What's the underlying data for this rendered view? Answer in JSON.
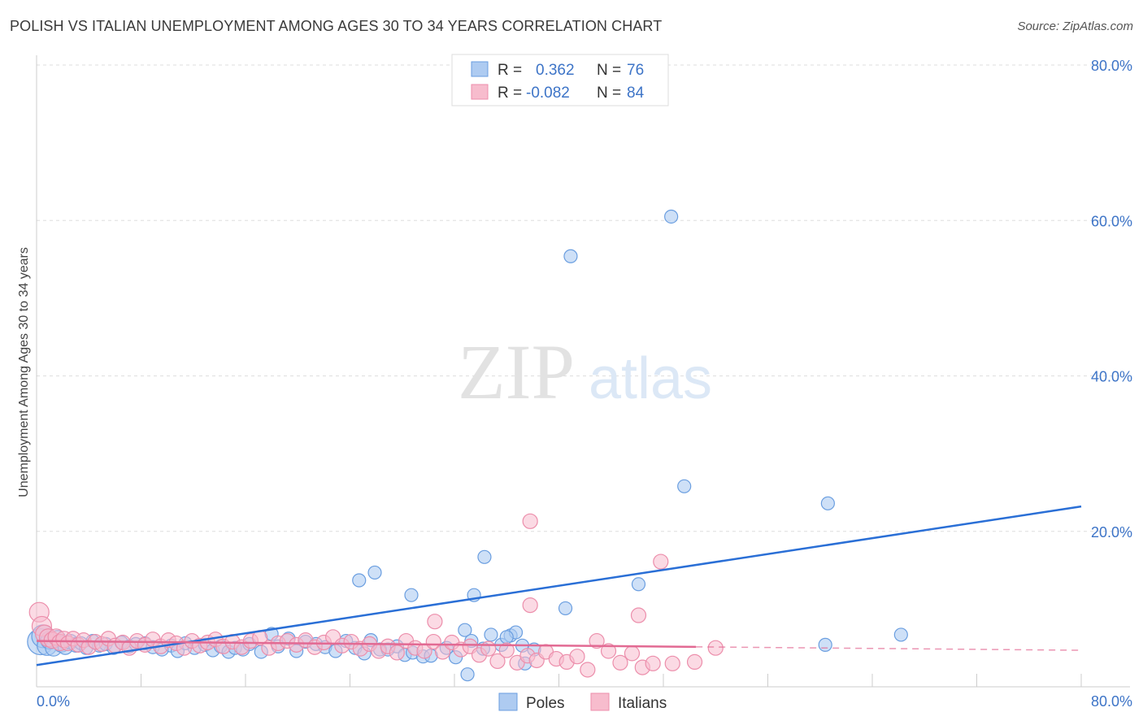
{
  "title": "POLISH VS ITALIAN UNEMPLOYMENT AMONG AGES 30 TO 34 YEARS CORRELATION CHART",
  "source": "Source: ZipAtlas.com",
  "watermark": {
    "zip": "ZIP",
    "atlas": "atlas"
  },
  "legend_stats": [
    {
      "r_label": "R =",
      "r_value": "0.362",
      "n_label": "N =",
      "n_value": "76"
    },
    {
      "r_label": "R =",
      "r_value": "-0.082",
      "n_label": "N =",
      "n_value": "84"
    }
  ],
  "bottom_legend": [
    "Poles",
    "Italians"
  ],
  "colors": {
    "poles_fill": "#aecbf1",
    "poles_stroke": "#6a9ee0",
    "poles_line": "#2a6fd6",
    "italians_fill": "#f7bccd",
    "italians_stroke": "#ec8eab",
    "italians_line": "#e26a93",
    "axis_label": "#3d74c7"
  },
  "chart_data": {
    "type": "scatter",
    "title": "POLISH VS ITALIAN UNEMPLOYMENT AMONG AGES 30 TO 34 YEARS CORRELATION CHART",
    "xlabel": "",
    "ylabel": "Unemployment Among Ages 30 to 34 years",
    "xlim": [
      0,
      80
    ],
    "ylim": [
      0,
      80
    ],
    "x_tick_labels": [
      "0.0%",
      "80.0%"
    ],
    "y_tick_labels": [
      "20.0%",
      "40.0%",
      "60.0%",
      "80.0%"
    ],
    "y_tick_values": [
      20,
      40,
      60,
      80
    ],
    "grid": true,
    "legend_position": "top-center",
    "series": [
      {
        "name": "Poles",
        "r": 0.362,
        "n": 76,
        "trend": {
          "x": [
            0,
            80
          ],
          "y": [
            2.8,
            23.2
          ]
        },
        "points": [
          [
            0.3,
            5.8,
            16
          ],
          [
            0.5,
            6.5,
            14
          ],
          [
            0.8,
            5.3,
            12
          ],
          [
            1.0,
            6.0,
            11
          ],
          [
            1.3,
            5.0,
            10
          ],
          [
            1.6,
            6.2,
            10
          ],
          [
            1.9,
            5.5,
            10
          ],
          [
            2.2,
            5.1,
            9
          ],
          [
            2.6,
            5.8,
            9
          ],
          [
            3.0,
            5.4,
            9
          ],
          [
            3.4,
            5.6,
            8
          ],
          [
            3.8,
            5.0,
            8
          ],
          [
            4.3,
            5.9,
            8
          ],
          [
            4.8,
            5.3,
            8
          ],
          [
            5.3,
            5.5,
            8
          ],
          [
            5.9,
            5.0,
            8
          ],
          [
            6.5,
            5.7,
            8
          ],
          [
            7.1,
            5.2,
            8
          ],
          [
            7.6,
            5.5,
            8
          ],
          [
            8.3,
            5.6,
            8
          ],
          [
            8.9,
            5.1,
            8
          ],
          [
            9.6,
            4.8,
            8
          ],
          [
            10.3,
            5.3,
            8
          ],
          [
            10.8,
            4.6,
            8
          ],
          [
            11.4,
            5.6,
            8
          ],
          [
            12.1,
            5.0,
            8
          ],
          [
            12.9,
            5.4,
            8
          ],
          [
            13.5,
            4.7,
            8
          ],
          [
            14.1,
            5.2,
            8
          ],
          [
            14.7,
            4.5,
            8
          ],
          [
            15.2,
            5.0,
            8
          ],
          [
            15.8,
            4.8,
            8
          ],
          [
            16.3,
            5.5,
            8
          ],
          [
            17.2,
            4.5,
            8
          ],
          [
            18.0,
            6.8,
            8
          ],
          [
            18.5,
            5.2,
            8
          ],
          [
            19.3,
            6.2,
            8
          ],
          [
            19.9,
            4.6,
            8
          ],
          [
            20.6,
            5.8,
            8
          ],
          [
            21.4,
            5.5,
            8
          ],
          [
            22.1,
            5.1,
            8
          ],
          [
            22.9,
            4.6,
            8
          ],
          [
            23.7,
            5.9,
            8
          ],
          [
            24.4,
            5.0,
            8
          ],
          [
            25.1,
            4.3,
            8
          ],
          [
            25.6,
            6.0,
            8
          ],
          [
            25.9,
            14.7,
            8
          ],
          [
            26.3,
            4.8,
            8
          ],
          [
            26.9,
            4.8,
            8
          ],
          [
            27.6,
            5.2,
            8
          ],
          [
            28.2,
            4.1,
            8
          ],
          [
            28.8,
            4.4,
            8
          ],
          [
            29.6,
            3.9,
            8
          ],
          [
            30.2,
            4.0,
            8
          ],
          [
            31.4,
            5.0,
            8
          ],
          [
            32.1,
            3.8,
            8
          ],
          [
            32.8,
            7.3,
            8
          ],
          [
            33.3,
            5.9,
            8
          ],
          [
            34.2,
            4.9,
            8
          ],
          [
            34.8,
            6.7,
            8
          ],
          [
            35.6,
            5.4,
            8
          ],
          [
            36.3,
            6.6,
            8
          ],
          [
            37.2,
            5.3,
            8
          ],
          [
            38.1,
            4.8,
            8
          ],
          [
            33.5,
            11.8,
            8
          ],
          [
            34.3,
            16.7,
            8
          ],
          [
            36.7,
            7.0,
            8
          ],
          [
            37.4,
            3.0,
            8
          ],
          [
            28.7,
            11.8,
            8
          ],
          [
            24.7,
            13.7,
            8
          ],
          [
            40.5,
            10.1,
            8
          ],
          [
            36.0,
            6.4,
            8
          ],
          [
            33.0,
            1.6,
            8
          ],
          [
            46.1,
            13.2,
            8
          ],
          [
            40.9,
            55.4,
            8
          ],
          [
            48.6,
            60.5,
            8
          ],
          [
            49.6,
            25.8,
            8
          ],
          [
            60.6,
            23.6,
            8
          ],
          [
            60.4,
            5.4,
            8
          ],
          [
            66.2,
            6.7,
            8
          ]
        ]
      },
      {
        "name": "Italians",
        "r": -0.082,
        "n": 84,
        "trend": {
          "x": [
            0,
            80
          ],
          "y": [
            5.9,
            4.7
          ]
        },
        "points": [
          [
            0.2,
            9.6,
            12
          ],
          [
            0.4,
            7.8,
            12
          ],
          [
            0.6,
            6.8,
            11
          ],
          [
            0.9,
            6.3,
            11
          ],
          [
            1.2,
            6.0,
            10
          ],
          [
            1.5,
            6.4,
            10
          ],
          [
            1.8,
            5.7,
            10
          ],
          [
            2.1,
            6.1,
            10
          ],
          [
            2.4,
            5.6,
            9
          ],
          [
            2.8,
            6.2,
            9
          ],
          [
            3.2,
            5.4,
            9
          ],
          [
            3.6,
            6.0,
            9
          ],
          [
            4.0,
            5.1,
            9
          ],
          [
            4.5,
            5.8,
            9
          ],
          [
            5.0,
            5.5,
            9
          ],
          [
            5.5,
            6.2,
            9
          ],
          [
            6.0,
            5.3,
            9
          ],
          [
            6.6,
            5.7,
            9
          ],
          [
            7.1,
            5.0,
            9
          ],
          [
            7.7,
            5.9,
            9
          ],
          [
            8.3,
            5.4,
            9
          ],
          [
            8.9,
            6.1,
            9
          ],
          [
            9.5,
            5.2,
            9
          ],
          [
            10.1,
            6.0,
            9
          ],
          [
            10.7,
            5.6,
            9
          ],
          [
            11.3,
            5.0,
            9
          ],
          [
            11.9,
            5.9,
            9
          ],
          [
            12.5,
            5.3,
            9
          ],
          [
            13.1,
            5.7,
            9
          ],
          [
            13.7,
            6.1,
            9
          ],
          [
            14.3,
            5.2,
            9
          ],
          [
            15.0,
            5.8,
            9
          ],
          [
            15.7,
            5.1,
            9
          ],
          [
            16.4,
            5.9,
            9
          ],
          [
            17.1,
            6.3,
            9
          ],
          [
            17.8,
            5.0,
            9
          ],
          [
            18.5,
            5.6,
            9
          ],
          [
            19.2,
            5.9,
            9
          ],
          [
            19.9,
            5.4,
            9
          ],
          [
            20.6,
            6.0,
            9
          ],
          [
            21.3,
            5.1,
            9
          ],
          [
            22.0,
            5.7,
            9
          ],
          [
            22.7,
            6.4,
            9
          ],
          [
            23.4,
            5.3,
            9
          ],
          [
            24.1,
            5.8,
            9
          ],
          [
            24.8,
            4.9,
            9
          ],
          [
            25.5,
            5.5,
            9
          ],
          [
            26.2,
            4.6,
            9
          ],
          [
            26.9,
            5.2,
            9
          ],
          [
            27.6,
            4.4,
            9
          ],
          [
            28.3,
            5.9,
            9
          ],
          [
            29.0,
            5.0,
            9
          ],
          [
            29.7,
            4.6,
            9
          ],
          [
            30.4,
            5.8,
            9
          ],
          [
            31.1,
            4.5,
            9
          ],
          [
            31.8,
            5.7,
            9
          ],
          [
            32.5,
            4.8,
            9
          ],
          [
            33.2,
            5.2,
            9
          ],
          [
            33.9,
            4.1,
            9
          ],
          [
            34.6,
            4.9,
            9
          ],
          [
            35.3,
            3.3,
            9
          ],
          [
            36.0,
            4.7,
            9
          ],
          [
            36.8,
            3.1,
            9
          ],
          [
            37.6,
            4.0,
            9
          ],
          [
            38.3,
            3.4,
            9
          ],
          [
            39.0,
            4.5,
            9
          ],
          [
            39.8,
            3.6,
            9
          ],
          [
            40.6,
            3.2,
            9
          ],
          [
            41.4,
            3.9,
            9
          ],
          [
            42.2,
            2.2,
            9
          ],
          [
            42.9,
            5.9,
            9
          ],
          [
            43.8,
            4.6,
            9
          ],
          [
            44.7,
            3.1,
            9
          ],
          [
            45.6,
            4.3,
            9
          ],
          [
            46.4,
            2.5,
            9
          ],
          [
            47.2,
            3.0,
            9
          ],
          [
            48.7,
            3.0,
            9
          ],
          [
            50.4,
            3.2,
            9
          ],
          [
            52.0,
            5.0,
            9
          ],
          [
            46.1,
            9.2,
            9
          ],
          [
            47.8,
            16.1,
            9
          ],
          [
            37.8,
            10.5,
            9
          ],
          [
            30.5,
            8.4,
            9
          ],
          [
            37.8,
            21.3,
            9
          ]
        ]
      }
    ]
  }
}
